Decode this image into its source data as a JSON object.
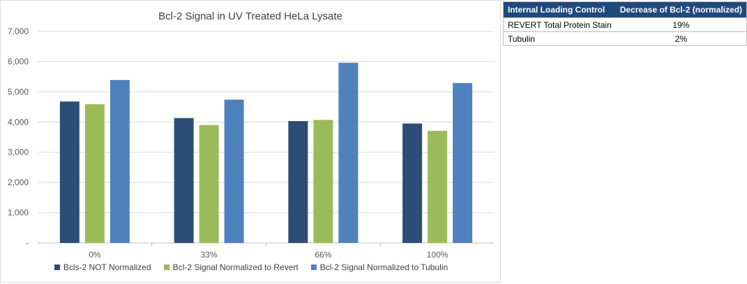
{
  "chart_data": {
    "type": "bar",
    "title": "Bcl-2 Signal in UV Treated HeLa Lysate",
    "categories": [
      "0%",
      "33%",
      "66%",
      "100%"
    ],
    "series": [
      {
        "name": "Bcls-2 NOT Normalized",
        "color": "#2c4d75",
        "values": [
          4680,
          4130,
          4030,
          3950
        ]
      },
      {
        "name": "Bcl-2 Signal Normalized to Revert",
        "color": "#9bbb59",
        "values": [
          4590,
          3900,
          4070,
          3710
        ]
      },
      {
        "name": "Bcl-2 Signal Normalized to Tubulin",
        "color": "#4f81bd",
        "values": [
          5390,
          4740,
          5960,
          5290
        ]
      }
    ],
    "ylim": [
      0,
      7000
    ],
    "yticks": [
      0,
      1000,
      2000,
      3000,
      4000,
      5000,
      6000,
      7000
    ],
    "ytick_labels": [
      "-",
      "1,000",
      "2,000",
      "3,000",
      "4,000",
      "5,000",
      "6,000",
      "7,000"
    ],
    "grid": true,
    "legend_position": "bottom"
  },
  "table": {
    "headers": [
      "Internal Loading Control",
      "Decrease of Bcl-2 (normalized)"
    ],
    "rows": [
      [
        "REVERT Total Protein Stain",
        "19%"
      ],
      [
        "Tubulin",
        "2%"
      ]
    ]
  }
}
